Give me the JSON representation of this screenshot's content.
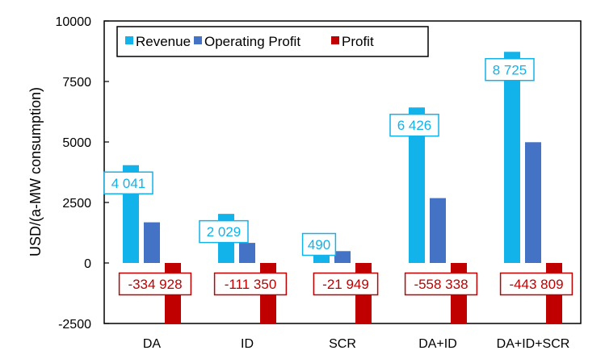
{
  "chart_data": {
    "type": "bar",
    "title": "",
    "xlabel": "",
    "ylabel": "USD/(a-MW consumption)",
    "ylim": [
      -2500,
      10000
    ],
    "yticks": [
      -2500,
      0,
      2500,
      5000,
      7500,
      10000
    ],
    "ytick_labels": [
      "-2500",
      "0",
      "2500",
      "5000",
      "7500",
      "10000"
    ],
    "grid": false,
    "legend_position": "top-left",
    "categories": [
      "DA",
      "ID",
      "SCR",
      "DA+ID",
      "DA+ID+SCR"
    ],
    "series": [
      {
        "name": "Revenue",
        "color": "#12b2ea",
        "values": [
          4041,
          2029,
          490,
          6426,
          8725
        ],
        "labels": [
          "4 041",
          "2 029",
          "490",
          "6 426",
          "8 725"
        ]
      },
      {
        "name": "Operating Profit",
        "color": "#4472c4",
        "values": [
          1680,
          830,
          490,
          2680,
          4990
        ],
        "labels": []
      },
      {
        "name": "Profit",
        "color": "#c00000",
        "values": [
          -334928,
          -111350,
          -21949,
          -558338,
          -443809
        ],
        "labels": [
          "-334 928",
          "-111 350",
          "-21 949",
          "-558 338",
          "-443 809"
        ]
      }
    ]
  }
}
